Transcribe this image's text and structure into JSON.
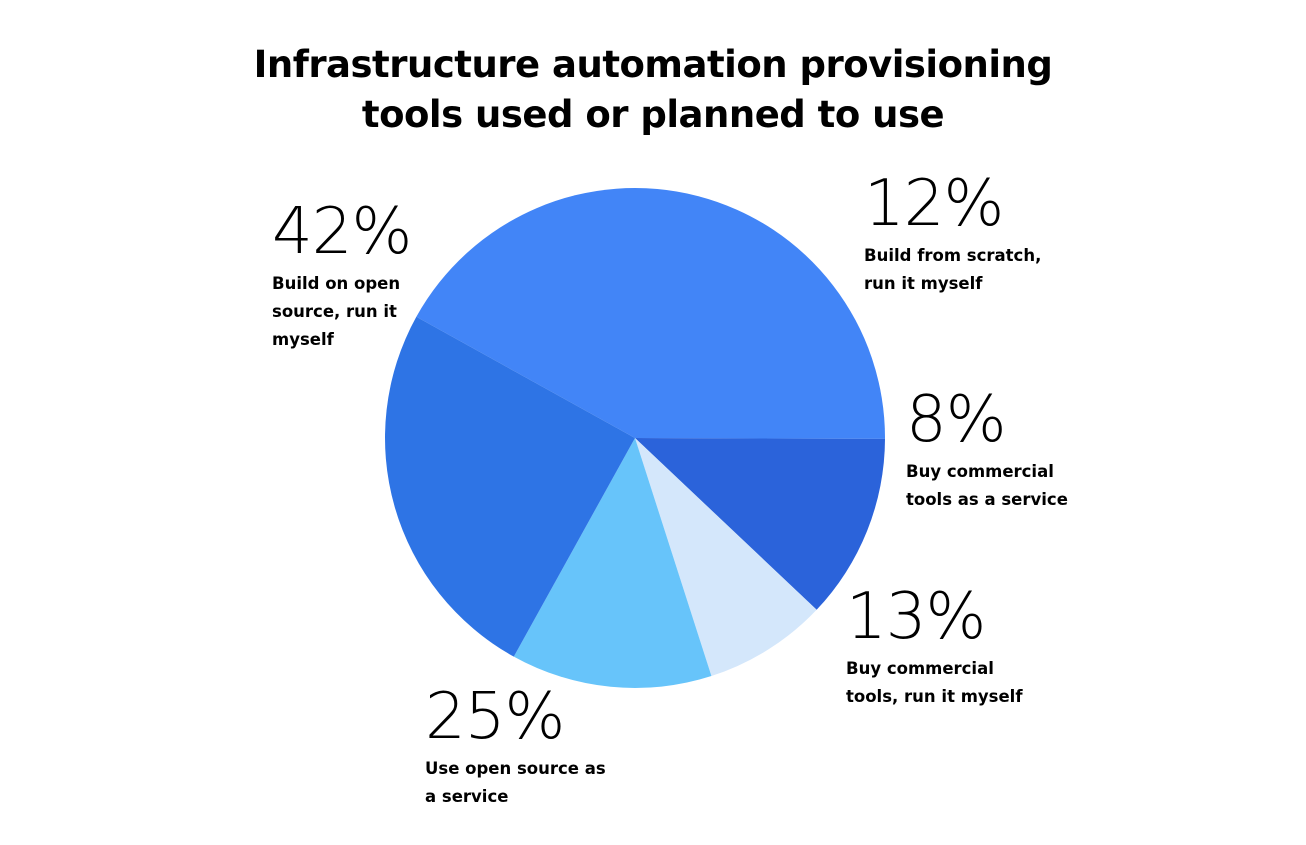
{
  "chart_data": {
    "type": "pie",
    "title_lines": [
      "Infrastructure automation provisioning",
      "tools used or planned to use"
    ],
    "slices": [
      {
        "label_lines": [
          "Build on open",
          "source, run it",
          "myself"
        ],
        "value": 42,
        "display": "42%",
        "color": "#4285f7"
      },
      {
        "label_lines": [
          "Build from scratch,",
          "run it myself"
        ],
        "value": 12,
        "display": "12%",
        "color": "#2b63da"
      },
      {
        "label_lines": [
          "Buy commercial",
          "tools as a service"
        ],
        "value": 8,
        "display": "8%",
        "color": "#d4e7fb"
      },
      {
        "label_lines": [
          "Buy commercial",
          "tools, run it myself"
        ],
        "value": 13,
        "display": "13%",
        "color": "#67c4fa"
      },
      {
        "label_lines": [
          "Use open source as",
          "a service"
        ],
        "value": 25,
        "display": "25%",
        "color": "#2e74e5"
      }
    ]
  }
}
